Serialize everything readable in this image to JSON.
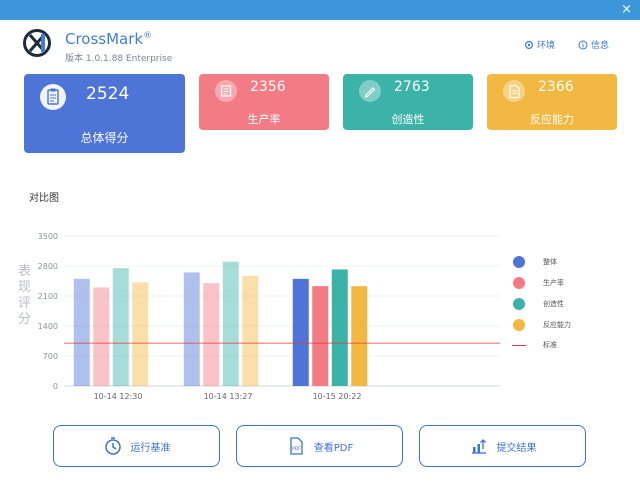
{
  "window": {
    "close_glyph": "×"
  },
  "header": {
    "app_name": "CrossMark",
    "registered": "®",
    "version": "版本 1.0.1.88 Enterprise",
    "env_label": "环境",
    "info_label": "信息"
  },
  "cards": {
    "total": {
      "value": "2524",
      "label": "总体得分",
      "icon": "clipboard-icon"
    },
    "productivity": {
      "value": "2356",
      "label": "生产率",
      "icon": "document-icon"
    },
    "creativity": {
      "value": "2763",
      "label": "创造性",
      "icon": "pencil-icon"
    },
    "responsiveness": {
      "value": "2366",
      "label": "反应能力",
      "icon": "page-icon"
    }
  },
  "chart_section": {
    "title": "对比图",
    "ylabel": "表现评分"
  },
  "chart_data": {
    "type": "bar",
    "categories": [
      "10-14 12:30",
      "10-14 13:27",
      "10-15 20:22"
    ],
    "series": [
      {
        "name": "整体",
        "values": [
          2500,
          2650,
          2500
        ],
        "color": "#4f74d8"
      },
      {
        "name": "生产率",
        "values": [
          2300,
          2400,
          2330
        ],
        "color": "#f37b86"
      },
      {
        "name": "创造性",
        "values": [
          2750,
          2900,
          2720
        ],
        "color": "#3cb3a9"
      },
      {
        "name": "反应能力",
        "values": [
          2420,
          2570,
          2330
        ],
        "color": "#f3b842"
      }
    ],
    "baseline": {
      "name": "标准",
      "value": 1000,
      "color": "#e53935"
    },
    "ylim": [
      0,
      3500
    ],
    "yticks": [
      0,
      700,
      1400,
      2100,
      2800,
      3500
    ],
    "highlighted_category": 2,
    "legend": "right",
    "grid": true
  },
  "buttons": {
    "run": "运行基准",
    "pdf": "查看PDF",
    "submit": "提交结果",
    "pdf_badge": "PDF"
  }
}
